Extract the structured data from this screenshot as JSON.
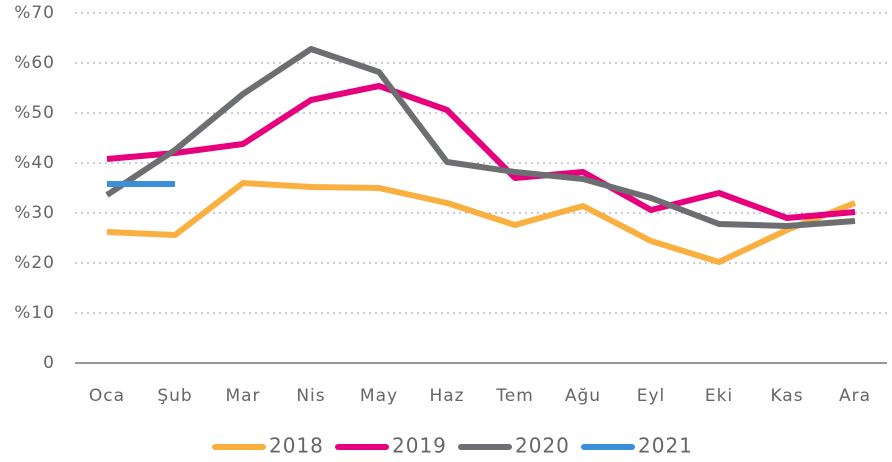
{
  "chart_data": {
    "type": "line",
    "categories": [
      "Oca",
      "Şub",
      "Mar",
      "Nis",
      "May",
      "Haz",
      "Tem",
      "Ağu",
      "Eyl",
      "Eki",
      "Kas",
      "Ara"
    ],
    "series": [
      {
        "name": "2018",
        "color": "#f9b041",
        "values": [
          26.2,
          25.6,
          36,
          35.2,
          35,
          32,
          27.6,
          31.4,
          24.4,
          20.2,
          26.6,
          32
        ]
      },
      {
        "name": "2019",
        "color": "#e6007e",
        "values": [
          40.8,
          42,
          43.8,
          52.6,
          55.4,
          50.6,
          37,
          38.2,
          30.6,
          34,
          29,
          30.2
        ]
      },
      {
        "name": "2020",
        "color": "#6d6e71",
        "values": [
          33.6,
          42.6,
          53.8,
          62.8,
          58.2,
          40.2,
          38.2,
          36.8,
          33,
          27.8,
          27.4,
          28.4
        ]
      },
      {
        "name": "2021",
        "color": "#3a8fd9",
        "values": [
          35.8,
          35.8,
          null,
          null,
          null,
          null,
          null,
          null,
          null,
          null,
          null,
          null
        ]
      }
    ],
    "ylim": [
      0,
      70
    ],
    "yticks": [
      0,
      {
        "value": 10,
        "label": "%10"
      },
      {
        "value": 20,
        "label": "%20"
      },
      {
        "value": 30,
        "label": "%30"
      },
      {
        "value": 40,
        "label": "%40"
      },
      {
        "value": 50,
        "label": "%50"
      },
      {
        "value": 60,
        "label": "%60"
      },
      {
        "value": 70,
        "label": "%70"
      }
    ],
    "grid": true,
    "legend": "bottom"
  }
}
